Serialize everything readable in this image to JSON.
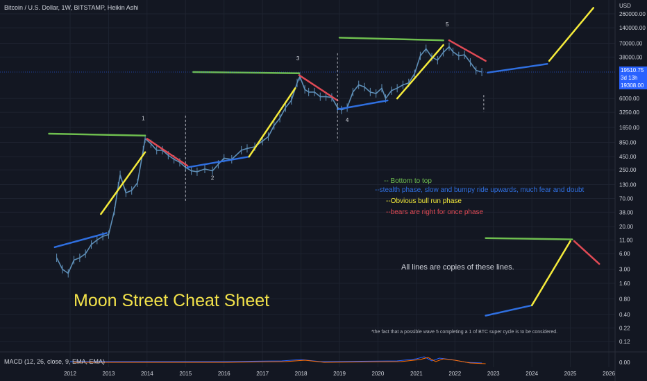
{
  "header": {
    "title": "Bitcoin / U.S. Dollar, 1W, BITSTAMP, Heikin Ashi"
  },
  "price_axis": {
    "currency": "USD",
    "last_price": "19510.75",
    "countdown": "3d 13h",
    "low_price": "19308.00"
  },
  "indicator": {
    "label": "MACD (12, 26, close, 9, EMA, EMA)",
    "zero_label": "0.00"
  },
  "legend": {
    "items": [
      {
        "text": "-- Bottom to top",
        "color": "#6fbf4f"
      },
      {
        "text": "--stealth phase, slow and bumpy ride upwards, much fear and doubt",
        "color": "#2f6fe0"
      },
      {
        "text": "--Obvious bull run phase",
        "color": "#f5eb3b"
      },
      {
        "text": "--bears are right for once phase",
        "color": "#e04a55"
      }
    ]
  },
  "title": "Moon Street Cheat Sheet",
  "note": "All lines are copies of these lines.",
  "footnote": "*the fact that a possible wave 5  completing a 1 of BTC super cycle is to be considered.",
  "wave_labels": [
    "1",
    "2",
    "3",
    "4",
    "5"
  ],
  "colors": {
    "background": "#131722",
    "grid": "#1e2330",
    "candle": "#5e8fb8",
    "green": "#6fbf4f",
    "blue": "#2f6fe0",
    "yellow": "#f5eb3b",
    "red": "#e04a55",
    "price_tag": "#2962ff"
  },
  "chart_data": {
    "type": "line",
    "scale": "log",
    "x_ticks": [
      "2012",
      "2013",
      "2014",
      "2015",
      "2016",
      "2017",
      "2018",
      "2019",
      "2020",
      "2021",
      "2022",
      "2023",
      "2024",
      "2025",
      "2026"
    ],
    "y_ticks": [
      "260000.00",
      "140000.00",
      "70000.00",
      "38000.00",
      "6000.00",
      "3250.00",
      "1650.00",
      "850.00",
      "450.00",
      "250.00",
      "130.00",
      "70.00",
      "38.00",
      "20.00",
      "11.00",
      "6.00",
      "3.00",
      "1.60",
      "0.80",
      "0.40",
      "0.22",
      "0.12"
    ],
    "series": [
      {
        "x": [
          2011.65,
          2011.8,
          2011.95,
          2012.1,
          2012.25,
          2012.4,
          2012.55,
          2012.7,
          2012.85,
          2013.0,
          2013.15,
          2013.25,
          2013.3,
          2013.45,
          2013.6,
          2013.75,
          2013.9,
          2013.95,
          2014.1,
          2014.25,
          2014.4,
          2014.55,
          2014.7,
          2014.85,
          2015.0,
          2015.15,
          2015.3,
          2015.5,
          2015.7,
          2015.85,
          2016.0,
          2016.2,
          2016.45,
          2016.6,
          2016.8,
          2017.0,
          2017.15,
          2017.3,
          2017.45,
          2017.6,
          2017.75,
          2017.9,
          2017.97,
          2018.1,
          2018.2,
          2018.35,
          2018.5,
          2018.65,
          2018.8,
          2018.95,
          2019.05,
          2019.2,
          2019.35,
          2019.5,
          2019.65,
          2019.8,
          2019.95,
          2020.1,
          2020.2,
          2020.35,
          2020.5,
          2020.65,
          2020.8,
          2020.95,
          2021.1,
          2021.25,
          2021.4,
          2021.55,
          2021.7,
          2021.85,
          2021.95,
          2022.1,
          2022.25,
          2022.4,
          2022.55,
          2022.7
        ],
        "y": [
          5,
          3,
          2.5,
          4.5,
          5,
          6,
          9,
          11,
          13,
          14,
          40,
          120,
          200,
          90,
          100,
          140,
          600,
          1000,
          800,
          600,
          600,
          480,
          400,
          350,
          280,
          240,
          230,
          260,
          240,
          320,
          420,
          400,
          600,
          650,
          700,
          900,
          1100,
          1800,
          2500,
          4000,
          5500,
          12000,
          16000,
          9000,
          8000,
          8000,
          6500,
          6500,
          6300,
          4000,
          3600,
          4000,
          8000,
          11000,
          10000,
          8000,
          7500,
          9500,
          6000,
          8500,
          9500,
          11000,
          12000,
          18000,
          40000,
          55000,
          38000,
          33000,
          47000,
          60000,
          48000,
          40000,
          42000,
          30000,
          21000,
          19500
        ]
      }
    ]
  }
}
